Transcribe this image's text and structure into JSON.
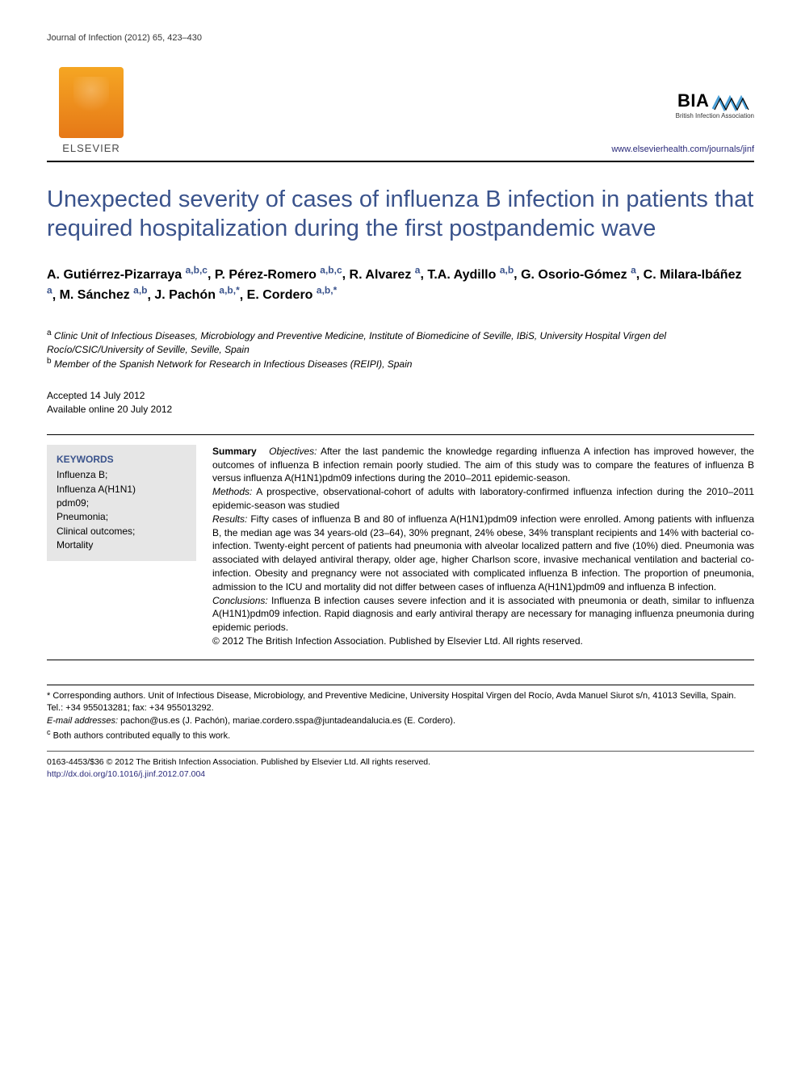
{
  "journal_ref": "Journal of Infection (2012) 65, 423–430",
  "publisher": {
    "name": "ELSEVIER"
  },
  "association": {
    "abbr": "BIA",
    "name": "British Infection Association"
  },
  "journal_url": "www.elsevierhealth.com/journals/jinf",
  "title": "Unexpected severity of cases of influenza B infection in patients that required hospitalization during the first postpandemic wave",
  "authors": [
    {
      "name": "A. Gutiérrez-Pizarraya",
      "aff": "a,b,c"
    },
    {
      "name": "P. Pérez-Romero",
      "aff": "a,b,c"
    },
    {
      "name": "R. Alvarez",
      "aff": "a"
    },
    {
      "name": "T.A. Aydillo",
      "aff": "a,b"
    },
    {
      "name": "G. Osorio-Gómez",
      "aff": "a"
    },
    {
      "name": "C. Milara-Ibáñez",
      "aff": "a"
    },
    {
      "name": "M. Sánchez",
      "aff": "a,b"
    },
    {
      "name": "J. Pachón",
      "aff": "a,b,*"
    },
    {
      "name": "E. Cordero",
      "aff": "a,b,*"
    }
  ],
  "affiliations": {
    "a": "Clinic Unit of Infectious Diseases, Microbiology and Preventive Medicine, Institute of Biomedicine of Seville, IBiS, University Hospital Virgen del Rocío/CSIC/University of Seville, Seville, Spain",
    "b": "Member of the Spanish Network for Research in Infectious Diseases (REIPI), Spain"
  },
  "dates": {
    "accepted": "Accepted 14 July 2012",
    "online": "Available online 20 July 2012"
  },
  "keywords_title": "KEYWORDS",
  "keywords": "Influenza B;\nInfluenza A(H1N1)\npdm09;\nPneumonia;\nClinical outcomes;\nMortality",
  "abstract": {
    "summary_label": "Summary",
    "objectives_label": "Objectives:",
    "objectives": " After the last pandemic the knowledge regarding influenza A infection has improved however, the outcomes of influenza B infection remain poorly studied. The aim of this study was to compare the features of influenza B versus influenza A(H1N1)pdm09 infections during the 2010–2011 epidemic-season.",
    "methods_label": "Methods:",
    "methods": " A prospective, observational-cohort of adults with laboratory-confirmed influenza infection during the 2010–2011 epidemic-season was studied",
    "results_label": "Results:",
    "results": " Fifty cases of influenza B and 80 of influenza A(H1N1)pdm09 infection were enrolled. Among patients with influenza B, the median age was 34 years-old (23–64), 30% pregnant, 24% obese, 34% transplant recipients and 14% with bacterial co-infection. Twenty-eight percent of patients had pneumonia with alveolar localized pattern and five (10%) died. Pneumonia was associated with delayed antiviral therapy, older age, higher Charlson score, invasive mechanical ventilation and bacterial co-infection. Obesity and pregnancy were not associated with complicated influenza B infection. The proportion of pneumonia, admission to the ICU and mortality did not differ between cases of influenza A(H1N1)pdm09 and influenza B infection.",
    "conclusions_label": "Conclusions:",
    "conclusions": " Influenza B infection causes severe infection and it is associated with pneumonia or death, similar to influenza A(H1N1)pdm09 infection. Rapid diagnosis and early antiviral therapy are necessary for managing influenza pneumonia during epidemic periods.",
    "copyright": "© 2012 The British Infection Association. Published by Elsevier Ltd. All rights reserved."
  },
  "footnotes": {
    "corresponding": "* Corresponding authors. Unit of Infectious Disease, Microbiology, and Preventive Medicine, University Hospital Virgen del Rocío, Avda Manuel Siurot s/n, 41013 Sevilla, Spain. Tel.: +34 955013281; fax: +34 955013292.",
    "email_label": "E-mail addresses:",
    "email1": "pachon@us.es",
    "email1_name": " (J. Pachón), ",
    "email2": "mariae.cordero.sspa@juntadeandalucia.es",
    "email2_name": " (E. Cordero).",
    "c_note": "Both authors contributed equally to this work."
  },
  "biblio": {
    "line1": "0163-4453/$36 © 2012 The British Infection Association. Published by Elsevier Ltd. All rights reserved.",
    "doi": "http://dx.doi.org/10.1016/j.jinf.2012.07.004"
  },
  "colors": {
    "title_blue": "#3a538c",
    "link_blue": "#2a2a7a",
    "keywords_bg": "#e6e6e6",
    "elsevier_orange": "#e67817"
  },
  "typography": {
    "title_fontsize": 29,
    "author_fontsize": 16,
    "body_fontsize": 12,
    "footnote_fontsize": 11
  }
}
